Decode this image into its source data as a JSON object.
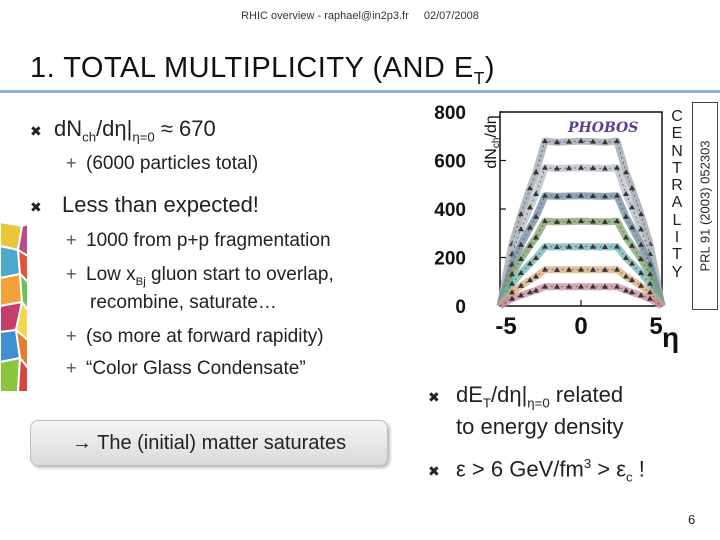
{
  "header": {
    "left": "RHIC overview - raphael@in2p3.fr",
    "right": "02/07/2008"
  },
  "title": {
    "text": "1. TOTAL MULTIPLICITY (AND E",
    "sub": "T",
    "tail": ")"
  },
  "bullets": {
    "b1": {
      "main": "dN",
      "sub1": "ch",
      "mid": "/dη|",
      "sub2": "η=0",
      "tail": " ≈ 670"
    },
    "b1_1": "(6000 particles total)",
    "b2": "Less than expected!",
    "b2_1": "1000 from p+p fragmentation",
    "b2_2": {
      "pre": "Low x",
      "sub": "Bj",
      "post": " gluon start to overlap,"
    },
    "b2_2_cont": "recombine, saturate…",
    "b2_3": "(so more at forward rapidity)",
    "b2_4": "“Color Glass Condensate”"
  },
  "callout": "→ The (initial) matter saturates",
  "right_bullets": {
    "r1": {
      "pre": "dE",
      "sub1": "T",
      "mid": "/dη|",
      "sub2": "η=0",
      "post": " related"
    },
    "r1_cont": "to energy density",
    "r2": {
      "pre": "ε > 6 GeV/fm",
      "sup": "3",
      "mid": " > ε",
      "sub": "c",
      "post": " !"
    }
  },
  "chart_data": {
    "type": "line",
    "ylabel": {
      "pre": "dN",
      "sub": "ch",
      "post": "/dη"
    },
    "xlabel": "η",
    "xlim": [
      -5.4,
      5.4
    ],
    "ylim": [
      0,
      800
    ],
    "xticks": [
      "-5",
      "0",
      "5"
    ],
    "yticks": [
      "0",
      "200",
      "400",
      "600",
      "800"
    ],
    "logo": "PHOBOS",
    "series": [
      {
        "color": "#9aa3ad",
        "values": [
          680,
          665,
          645
        ]
      },
      {
        "color": "#b5bcc4",
        "values": [
          570,
          560,
          540
        ]
      },
      {
        "color": "#6d88a0",
        "values": [
          455,
          445,
          430
        ]
      },
      {
        "color": "#7fa06a",
        "values": [
          350,
          340,
          330
        ]
      },
      {
        "color": "#6fb3b0",
        "values": [
          245,
          240,
          232
        ]
      },
      {
        "color": "#d8aa7e",
        "values": [
          150,
          147,
          142
        ]
      },
      {
        "color": "#c88b9d",
        "values": [
          80,
          78,
          75
        ]
      }
    ]
  },
  "centrality": [
    "C",
    "E",
    "N",
    "T",
    "R",
    "A",
    "L",
    "I",
    "T",
    "Y"
  ],
  "reference": "PRL 91 (2003) 052303",
  "page_number": "6"
}
